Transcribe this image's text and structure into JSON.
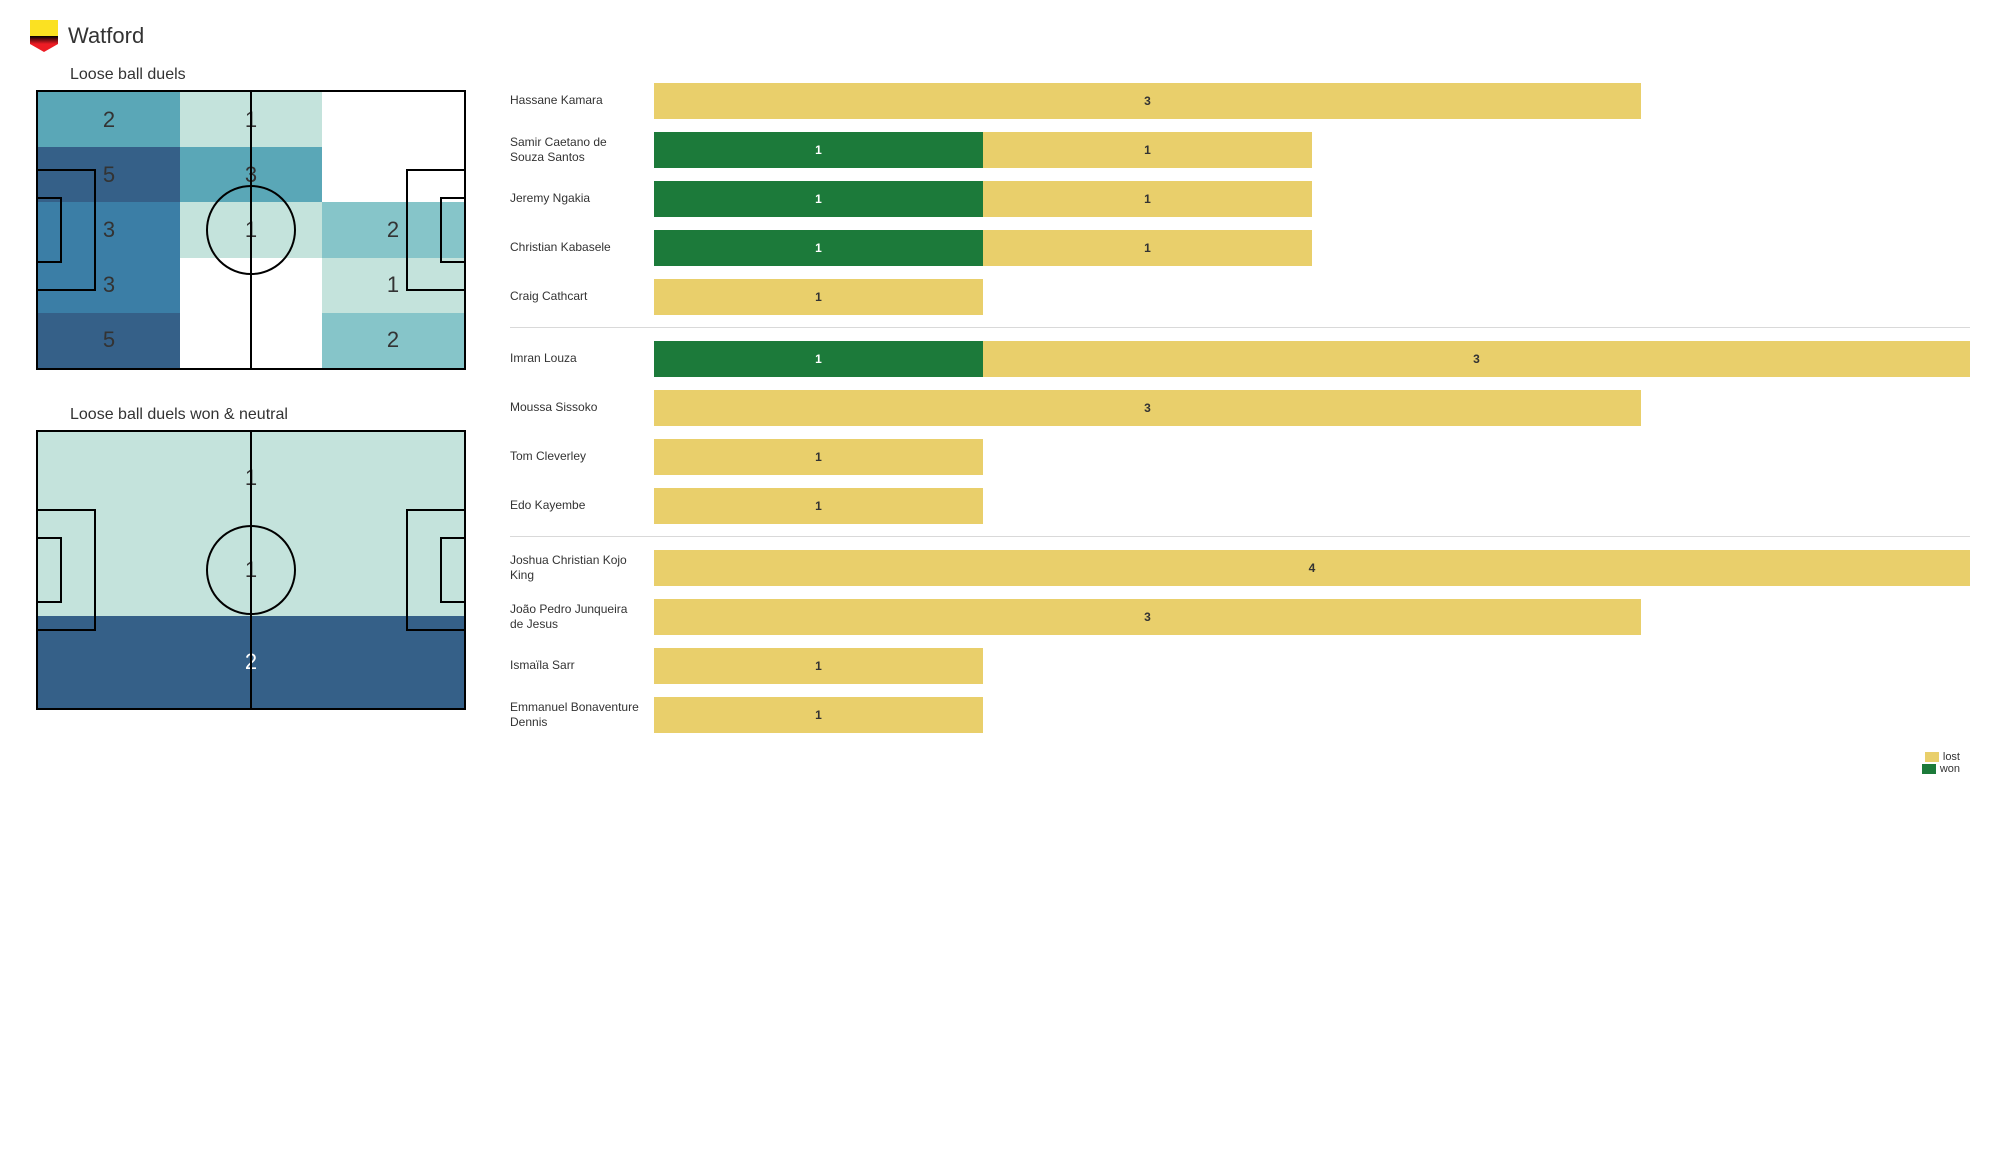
{
  "team": "Watford",
  "colors": {
    "won": "#1c7a3a",
    "lost": "#e9cf6b",
    "heat0": "#ffffff",
    "heat1": "#c4e3dc",
    "heat2": "#86c5c9",
    "heat3": "#5aa7b7",
    "heat4": "#3b7ea6",
    "heat5": "#356088",
    "third_light": "#c4e3dc",
    "third_dark": "#356088",
    "line": "#000000"
  },
  "pitch1": {
    "title": "Loose ball duels",
    "cells": [
      [
        2,
        1,
        null
      ],
      [
        5,
        3,
        null
      ],
      [
        3,
        1,
        2
      ],
      [
        3,
        null,
        1
      ],
      [
        5,
        null,
        2
      ]
    ],
    "cell_colors": [
      [
        "heat3",
        "heat1",
        "heat0"
      ],
      [
        "heat5",
        "heat3",
        "heat0"
      ],
      [
        "heat4",
        "heat1",
        "heat2"
      ],
      [
        "heat4",
        "heat0",
        "heat1"
      ],
      [
        "heat5",
        "heat0",
        "heat2"
      ]
    ]
  },
  "pitch2": {
    "title": "Loose ball duels won & neutral",
    "thirds": [
      {
        "value": 1,
        "color": "third_light"
      },
      {
        "value": 1,
        "color": "third_light"
      },
      {
        "value": 2,
        "color": "third_dark"
      }
    ]
  },
  "bar_max": 4,
  "legend": {
    "lost": "lost",
    "won": "won"
  },
  "groups": [
    {
      "players": [
        {
          "name": "Hassane Kamara",
          "won": 0,
          "lost": 3
        },
        {
          "name": "Samir Caetano de Souza Santos",
          "won": 1,
          "lost": 1
        },
        {
          "name": "Jeremy Ngakia",
          "won": 1,
          "lost": 1
        },
        {
          "name": "Christian Kabasele",
          "won": 1,
          "lost": 1
        },
        {
          "name": "Craig Cathcart",
          "won": 0,
          "lost": 1
        }
      ]
    },
    {
      "players": [
        {
          "name": "Imran Louza",
          "won": 1,
          "lost": 3
        },
        {
          "name": "Moussa Sissoko",
          "won": 0,
          "lost": 3
        },
        {
          "name": "Tom Cleverley",
          "won": 0,
          "lost": 1
        },
        {
          "name": "Edo Kayembe",
          "won": 0,
          "lost": 1
        }
      ]
    },
    {
      "players": [
        {
          "name": "Joshua Christian Kojo King",
          "won": 0,
          "lost": 4
        },
        {
          "name": "João Pedro Junqueira de Jesus",
          "won": 0,
          "lost": 3
        },
        {
          "name": "Ismaïla Sarr",
          "won": 0,
          "lost": 1
        },
        {
          "name": "Emmanuel Bonaventure Dennis",
          "won": 0,
          "lost": 1
        }
      ]
    }
  ]
}
